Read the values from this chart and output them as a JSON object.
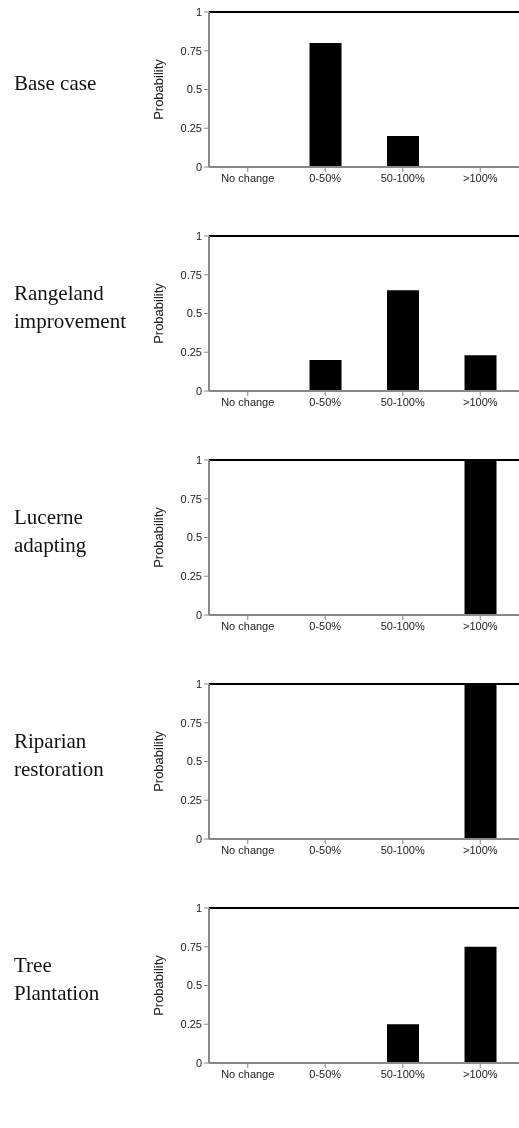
{
  "chart_data": [
    {
      "type": "bar",
      "title": "Base case",
      "ylabel": "Probability",
      "categories": [
        "No change",
        "0-50%",
        "50-100%",
        ">100%"
      ],
      "values": [
        0,
        0.8,
        0.2,
        0
      ],
      "color": "#000000",
      "ylim": [
        0,
        1
      ],
      "yticks": [
        0,
        0.25,
        0.5,
        0.75,
        1
      ],
      "grid": false,
      "legend": false
    },
    {
      "type": "bar",
      "title": "Rangeland improvement",
      "ylabel": "Probability",
      "categories": [
        "No change",
        "0-50%",
        "50-100%",
        ">100%"
      ],
      "values": [
        0,
        0.2,
        0.65,
        0.23
      ],
      "color": "#000000",
      "ylim": [
        0,
        1
      ],
      "yticks": [
        0,
        0.25,
        0.5,
        0.75,
        1
      ],
      "grid": false,
      "legend": false
    },
    {
      "type": "bar",
      "title": "Lucerne adapting",
      "ylabel": "Probability",
      "categories": [
        "No change",
        "0-50%",
        "50-100%",
        ">100%"
      ],
      "values": [
        0,
        0,
        0,
        1
      ],
      "color": "#000000",
      "ylim": [
        0,
        1
      ],
      "yticks": [
        0,
        0.25,
        0.5,
        0.75,
        1
      ],
      "grid": false,
      "legend": false
    },
    {
      "type": "bar",
      "title": "Riparian restoration",
      "ylabel": "Probability",
      "categories": [
        "No change",
        "0-50%",
        "50-100%",
        ">100%"
      ],
      "values": [
        0,
        0,
        0,
        1
      ],
      "color": "#000000",
      "ylim": [
        0,
        1
      ],
      "yticks": [
        0,
        0.25,
        0.5,
        0.75,
        1
      ],
      "grid": false,
      "legend": false
    },
    {
      "type": "bar",
      "title": "Tree Plantation",
      "ylabel": "Probability",
      "categories": [
        "No change",
        "0-50%",
        "50-100%",
        ">100%"
      ],
      "values": [
        0,
        0,
        0.25,
        0.75
      ],
      "color": "#000000",
      "ylim": [
        0,
        1
      ],
      "yticks": [
        0,
        0.25,
        0.5,
        0.75,
        1
      ],
      "grid": false,
      "legend": false
    }
  ]
}
